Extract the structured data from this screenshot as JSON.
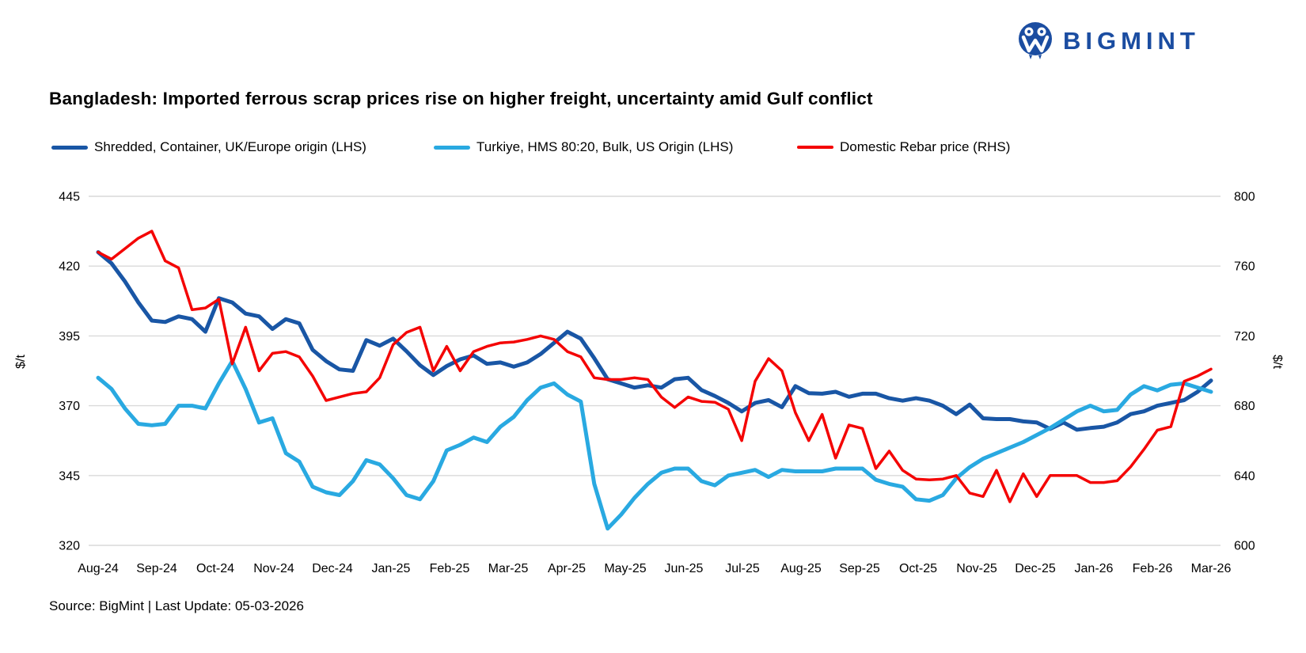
{
  "logo": {
    "brand": "BIGMINT",
    "color": "#1b4da1"
  },
  "title": "Bangladesh: Imported ferrous scrap prices rise on higher freight, uncertainty amid Gulf conflict",
  "source_note": "Source: BigMint | Last Update: 05-03-2026",
  "colors": {
    "grid": "#d9d9d9",
    "text": "#000000"
  },
  "chart_data": {
    "type": "line",
    "title": "Bangladesh: Imported ferrous scrap prices rise on higher freight, uncertainty amid Gulf conflict",
    "legend_position": "top",
    "grid": "horizontal",
    "x_labels": [
      "Aug-24",
      "Sep-24",
      "Oct-24",
      "Nov-24",
      "Dec-24",
      "Jan-25",
      "Feb-25",
      "Mar-25",
      "Apr-25",
      "May-25",
      "Jun-25",
      "Jul-25",
      "Aug-25",
      "Sep-25",
      "Oct-25",
      "Nov-25",
      "Dec-25",
      "Jan-26",
      "Feb-26",
      "Mar-26"
    ],
    "left_axis": {
      "label": "$/t",
      "min": 320,
      "max": 445,
      "ticks": [
        445,
        420,
        395,
        370,
        345,
        320
      ]
    },
    "right_axis": {
      "label": "$/t",
      "min": 600,
      "max": 800,
      "ticks": [
        800,
        760,
        720,
        680,
        640,
        600
      ]
    },
    "series": [
      {
        "name": "Shredded, Container, UK/Europe origin (LHS)",
        "axis": "left",
        "color": "#1956a5",
        "line_width": 5,
        "values": [
          425,
          421,
          414.5,
          407,
          400.5,
          400,
          402,
          401,
          396.5,
          408.5,
          407,
          403,
          402,
          397.5,
          401,
          399.5,
          390,
          386,
          383,
          382.5,
          393.5,
          391.5,
          394,
          389.5,
          384.5,
          381,
          384.2,
          386.6,
          388,
          385,
          385.5,
          384,
          385.5,
          388.5,
          392.5,
          396.5,
          394,
          387,
          379.5,
          378,
          376.5,
          377.3,
          376.5,
          379.5,
          380,
          375.6,
          373.5,
          371,
          368,
          371,
          372,
          369.5,
          377,
          374.5,
          374.3,
          375,
          373.2,
          374.3,
          374.3,
          372.7,
          371.8,
          372.7,
          371.8,
          370,
          367,
          370.4,
          365.5,
          365.2,
          365.2,
          364.4,
          364,
          361.7,
          364,
          361.4,
          362,
          362.5,
          364,
          367,
          368,
          370,
          371,
          372,
          375,
          379
        ]
      },
      {
        "name": "Turkiye, HMS 80:20, Bulk, US Origin (LHS)",
        "axis": "left",
        "color": "#29a9e1",
        "line_width": 5,
        "values": [
          380,
          376,
          369,
          363.5,
          363,
          363.5,
          370,
          370,
          369,
          378,
          386,
          376,
          364,
          365.5,
          353,
          350,
          341,
          339,
          338,
          343,
          350.5,
          349,
          344,
          338,
          336.5,
          343,
          354,
          356,
          358.6,
          357,
          362.5,
          366,
          372,
          376.5,
          378,
          374,
          371.5,
          342,
          326,
          331,
          337,
          342,
          346,
          347.5,
          347.5,
          343,
          341.5,
          345,
          346,
          347,
          344.5,
          347,
          346.5,
          346.5,
          346.5,
          347.5,
          347.5,
          347.5,
          343.5,
          342,
          341,
          336.5,
          336,
          338,
          344,
          348,
          351,
          353,
          355,
          357,
          359.5,
          362,
          365,
          368,
          370,
          368,
          368.5,
          374,
          377,
          375.5,
          377.5,
          378,
          376.5,
          375
        ]
      },
      {
        "name": "Domestic Rebar price (RHS)",
        "axis": "right",
        "color": "#f40404",
        "line_width": 3.5,
        "values": [
          768,
          764,
          770,
          776,
          780,
          763,
          759,
          735,
          736,
          741,
          704,
          725,
          700,
          710,
          711,
          708,
          697,
          683,
          685,
          687,
          688,
          696,
          715,
          722,
          725,
          700,
          714,
          700,
          711,
          714,
          716,
          716.5,
          718,
          720,
          718,
          711,
          708,
          696,
          695,
          695,
          696,
          695,
          685,
          679,
          685,
          682.5,
          682,
          678,
          660,
          694,
          707,
          700,
          676,
          660,
          675,
          650,
          669,
          667,
          644,
          654,
          643,
          638,
          637.5,
          638,
          640,
          630,
          628,
          643,
          625,
          641,
          628,
          640,
          640,
          640,
          636,
          636,
          637,
          645,
          655,
          666,
          668,
          694,
          697,
          701
        ]
      }
    ]
  }
}
